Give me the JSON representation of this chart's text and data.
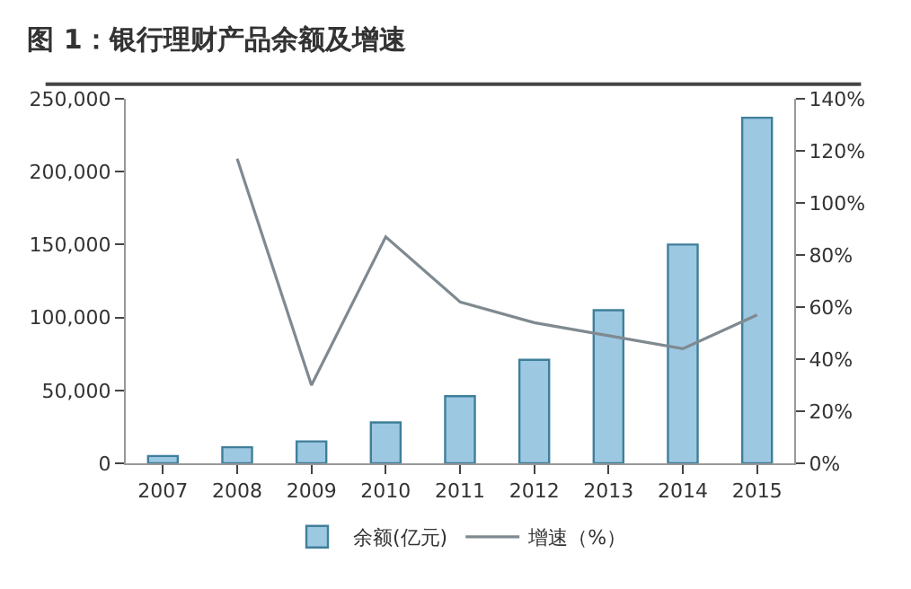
{
  "chart_data": {
    "type": "bar",
    "title": "图 1：银行理财产品余额及增速",
    "categories": [
      "2007",
      "2008",
      "2009",
      "2010",
      "2011",
      "2012",
      "2013",
      "2014",
      "2015"
    ],
    "series": [
      {
        "name": "余额(亿元)",
        "color": "#9cc8e2",
        "values": [
          5000,
          11000,
          15000,
          28000,
          46000,
          71000,
          105000,
          150000,
          237000
        ]
      },
      {
        "name": "增速（%）",
        "type": "line",
        "axis": "y2",
        "color": "#7f8a90",
        "values": [
          null,
          117,
          30,
          87,
          62,
          54,
          49,
          44,
          57
        ]
      }
    ],
    "ylim": [
      0,
      250000
    ],
    "yticks": [
      {
        "value": 0,
        "label": "0"
      },
      {
        "value": 50000,
        "label": "50,000"
      },
      {
        "value": 100000,
        "label": "100,000"
      },
      {
        "value": 150000,
        "label": "150,000"
      },
      {
        "value": 200000,
        "label": "200,000"
      },
      {
        "value": 250000,
        "label": "250,000"
      }
    ],
    "y2lim": [
      0,
      140
    ],
    "y2ticks": [
      {
        "value": 0,
        "label": "0%"
      },
      {
        "value": 20,
        "label": "20%"
      },
      {
        "value": 40,
        "label": "40%"
      },
      {
        "value": 60,
        "label": "60%"
      },
      {
        "value": 80,
        "label": "80%"
      },
      {
        "value": 100,
        "label": "100%"
      },
      {
        "value": 120,
        "label": "120%"
      },
      {
        "value": 140,
        "label": "140%"
      }
    ],
    "legend": "bottom",
    "marker": "none",
    "line_style": "solid"
  }
}
